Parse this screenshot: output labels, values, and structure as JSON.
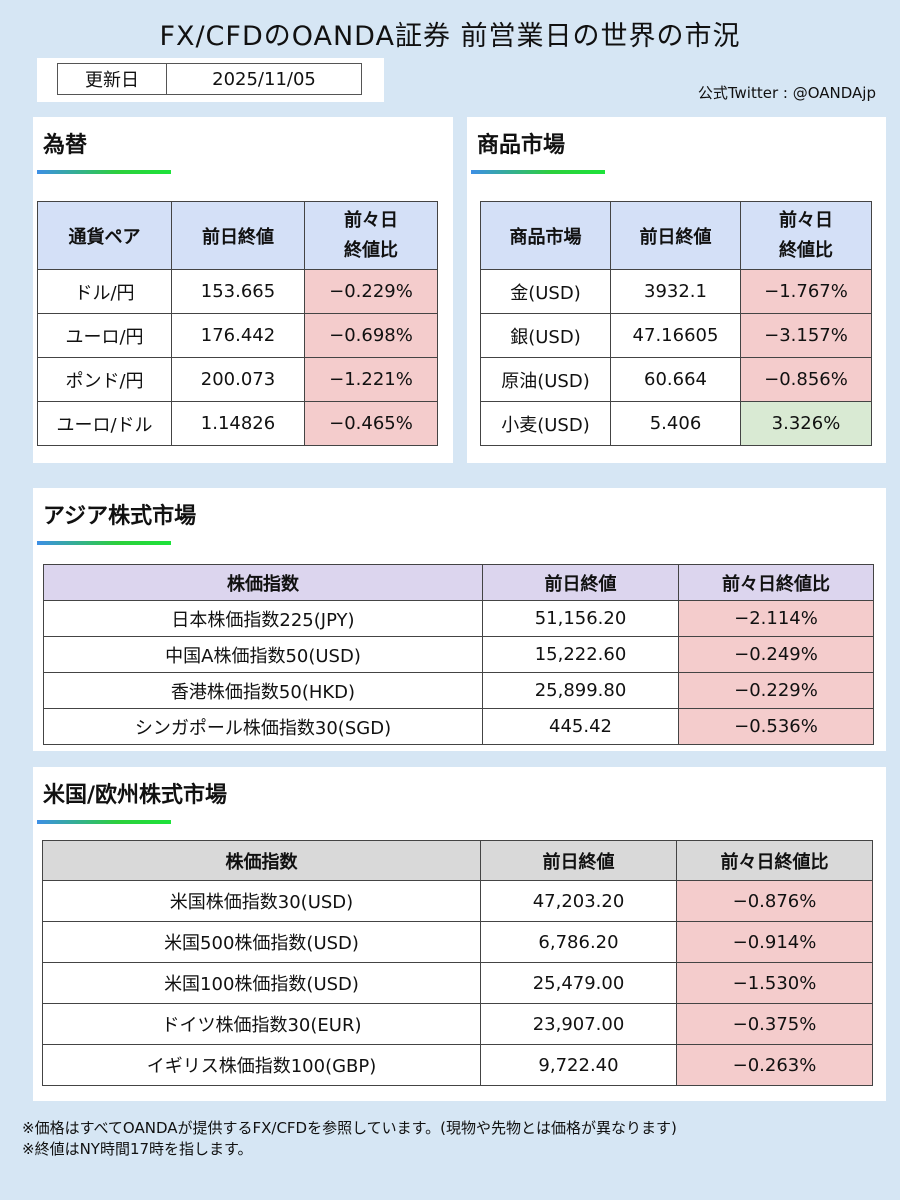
{
  "header": {
    "title": "FX/CFDのOANDA証券 前営業日の世界の市況",
    "update_label": "更新日",
    "update_date": "2025/11/05",
    "twitter": "公式Twitter : @OANDAjp"
  },
  "fx": {
    "title": "為替",
    "columns": [
      "通貨ペア",
      "前日終値",
      "前々日\n終値比"
    ],
    "rows": [
      {
        "name": "ドル/円",
        "close": "153.665",
        "change": "−0.229%",
        "dir": "neg"
      },
      {
        "name": "ユーロ/円",
        "close": "176.442",
        "change": "−0.698%",
        "dir": "neg"
      },
      {
        "name": "ポンド/円",
        "close": "200.073",
        "change": "−1.221%",
        "dir": "neg"
      },
      {
        "name": "ユーロ/ドル",
        "close": "1.14826",
        "change": "−0.465%",
        "dir": "neg"
      }
    ]
  },
  "commodities": {
    "title": "商品市場",
    "columns": [
      "商品市場",
      "前日終値",
      "前々日\n終値比"
    ],
    "rows": [
      {
        "name": "金(USD)",
        "close": "3932.1",
        "change": "−1.767%",
        "dir": "neg"
      },
      {
        "name": "銀(USD)",
        "close": "47.16605",
        "change": "−3.157%",
        "dir": "neg"
      },
      {
        "name": "原油(USD)",
        "close": "60.664",
        "change": "−0.856%",
        "dir": "neg"
      },
      {
        "name": "小麦(USD)",
        "close": "5.406",
        "change": "3.326%",
        "dir": "pos"
      }
    ]
  },
  "asia": {
    "title": "アジア株式市場",
    "columns": [
      "株価指数",
      "前日終値",
      "前々日終値比"
    ],
    "rows": [
      {
        "name": "日本株価指数225(JPY)",
        "close": "51,156.20",
        "change": "−2.114%",
        "dir": "neg"
      },
      {
        "name": "中国A株価指数50(USD)",
        "close": "15,222.60",
        "change": "−0.249%",
        "dir": "neg"
      },
      {
        "name": "香港株価指数50(HKD)",
        "close": "25,899.80",
        "change": "−0.229%",
        "dir": "neg"
      },
      {
        "name": "シンガポール株価指数30(SGD)",
        "close": "445.42",
        "change": "−0.536%",
        "dir": "neg"
      }
    ]
  },
  "us_eu": {
    "title": "米国/欧州株式市場",
    "columns": [
      "株価指数",
      "前日終値",
      "前々日終値比"
    ],
    "rows": [
      {
        "name": "米国株価指数30(USD)",
        "close": "47,203.20",
        "change": "−0.876%",
        "dir": "neg"
      },
      {
        "name": "米国500株価指数(USD)",
        "close": "6,786.20",
        "change": "−0.914%",
        "dir": "neg"
      },
      {
        "name": "米国100株価指数(USD)",
        "close": "25,479.00",
        "change": "−1.530%",
        "dir": "neg"
      },
      {
        "name": "ドイツ株価指数30(EUR)",
        "close": "23,907.00",
        "change": "−0.375%",
        "dir": "neg"
      },
      {
        "name": "イギリス株価指数100(GBP)",
        "close": "9,722.40",
        "change": "−0.263%",
        "dir": "neg"
      }
    ]
  },
  "notes": [
    "※価格はすべてOANDAが提供するFX/CFDを参照しています。(現物や先物とは価格が異なります)",
    "※終値はNY時間17時を指します。"
  ]
}
